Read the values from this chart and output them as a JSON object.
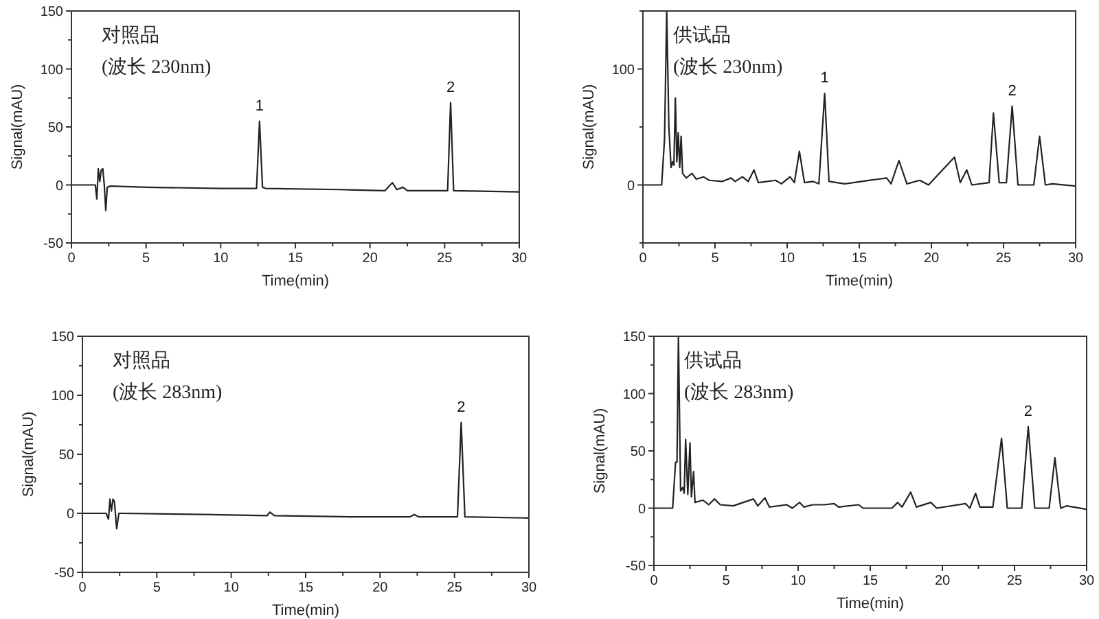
{
  "chart_data": [
    {
      "type": "line",
      "title": "对照品",
      "subtitle": "(波长 230nm)",
      "xlabel": "Time(min)",
      "ylabel": "Signal(mAU)",
      "color": "#222222",
      "x": [
        0,
        1.6,
        1.7,
        1.8,
        1.9,
        2.0,
        2.1,
        2.2,
        2.3,
        2.4,
        2.6,
        5,
        10,
        12.4,
        12.6,
        12.8,
        13,
        18,
        21,
        21.5,
        21.8,
        22.2,
        22.5,
        25.2,
        25.4,
        25.6,
        30
      ],
      "values": [
        0,
        0,
        -12,
        14,
        3,
        13,
        14,
        0,
        -22,
        -2,
        -1,
        -2,
        -3,
        -3,
        55,
        -2,
        -3,
        -4,
        -5,
        2,
        -4,
        -2,
        -5,
        -5,
        71,
        -5,
        -6
      ],
      "xlim": [
        0,
        30
      ],
      "ylim": [
        -50,
        150
      ],
      "xticks": [
        0,
        {
          "value": 2.5,
          "label": null
        },
        5,
        {
          "value": 7.5,
          "label": null
        },
        10,
        {
          "value": 12.5,
          "label": null
        },
        15,
        {
          "value": 17.5,
          "label": null
        },
        20,
        {
          "value": 22.5,
          "label": null
        },
        25,
        {
          "value": 27.5,
          "label": null
        },
        30
      ],
      "yticks": [
        -50,
        {
          "value": -25,
          "label": null
        },
        0,
        {
          "value": 25,
          "label": null
        },
        50,
        {
          "value": 75,
          "label": null
        },
        100,
        {
          "value": 125,
          "label": null
        },
        150
      ],
      "annotations": [
        {
          "text": "1",
          "x": 12.6,
          "y": 55
        },
        {
          "text": "2",
          "x": 25.4,
          "y": 71
        }
      ]
    },
    {
      "type": "line",
      "title": "供试品",
      "subtitle": "(波长 230nm)",
      "xlabel": "Time(min)",
      "ylabel": "Signal(mAU)",
      "color": "#222222",
      "x": [
        0,
        1.3,
        1.5,
        1.65,
        1.8,
        1.95,
        2.05,
        2.15,
        2.25,
        2.35,
        2.45,
        2.55,
        2.65,
        2.75,
        3.0,
        3.4,
        3.7,
        4.2,
        4.6,
        5.5,
        6.1,
        6.4,
        6.9,
        7.3,
        7.7,
        8.0,
        9.2,
        9.6,
        10.2,
        10.5,
        10.85,
        11.2,
        11.8,
        12.2,
        12.6,
        12.9,
        14,
        16.9,
        17.2,
        17.75,
        18.3,
        19.2,
        19.8,
        21.6,
        22.0,
        22.45,
        22.8,
        24,
        24.3,
        24.7,
        25.2,
        25.6,
        26.0,
        27.1,
        27.5,
        27.9,
        28.4,
        30
      ],
      "values": [
        0,
        0,
        40,
        150,
        50,
        15,
        20,
        17,
        75,
        20,
        45,
        15,
        42,
        10,
        6,
        10,
        5,
        7,
        4,
        3,
        6,
        3,
        7,
        3,
        13,
        2,
        4,
        1,
        7,
        2,
        29,
        2,
        3,
        1,
        79,
        3,
        1,
        6,
        1,
        21,
        1,
        4,
        0,
        24,
        2,
        13,
        0,
        2,
        62,
        2,
        2,
        68,
        0,
        0,
        42,
        0,
        1,
        -1
      ],
      "xlim": [
        0,
        30
      ],
      "ylim": [
        -50,
        150
      ],
      "xticks": [
        0,
        {
          "value": 2.5,
          "label": null
        },
        5,
        {
          "value": 7.5,
          "label": null
        },
        10,
        {
          "value": 12.5,
          "label": null
        },
        15,
        {
          "value": 17.5,
          "label": null
        },
        20,
        {
          "value": 22.5,
          "label": null
        },
        25,
        {
          "value": 27.5,
          "label": null
        },
        30
      ],
      "yticks": [
        {
          "value": -50,
          "label": null
        },
        0,
        {
          "value": 50,
          "label": null
        },
        100,
        {
          "value": 150,
          "label": null
        }
      ],
      "annotations": [
        {
          "text": "1",
          "x": 12.6,
          "y": 79
        },
        {
          "text": "2",
          "x": 25.6,
          "y": 68
        }
      ]
    },
    {
      "type": "line",
      "title": "对照品",
      "subtitle": "(波长 283nm)",
      "xlabel": "Time(min)",
      "ylabel": "Signal(mAU)",
      "color": "#222222",
      "x": [
        0,
        1.6,
        1.75,
        1.85,
        1.95,
        2.05,
        2.15,
        2.3,
        2.45,
        2.6,
        8,
        12.4,
        12.6,
        12.9,
        18,
        22.0,
        22.3,
        22.6,
        25.2,
        25.45,
        25.7,
        30
      ],
      "values": [
        0,
        0,
        -5,
        12,
        2,
        12,
        10,
        -13,
        0,
        0,
        -1,
        -2,
        1,
        -2,
        -3,
        -3,
        -1,
        -3,
        -3,
        77,
        -3,
        -4
      ],
      "xlim": [
        0,
        30
      ],
      "ylim": [
        -50,
        150
      ],
      "xticks": [
        0,
        {
          "value": 2.5,
          "label": null
        },
        5,
        {
          "value": 7.5,
          "label": null
        },
        10,
        {
          "value": 12.5,
          "label": null
        },
        15,
        {
          "value": 17.5,
          "label": null
        },
        20,
        {
          "value": 22.5,
          "label": null
        },
        25,
        {
          "value": 27.5,
          "label": null
        },
        30
      ],
      "yticks": [
        -50,
        {
          "value": -25,
          "label": null
        },
        0,
        {
          "value": 25,
          "label": null
        },
        50,
        {
          "value": 75,
          "label": null
        },
        100,
        {
          "value": 125,
          "label": null
        },
        150
      ],
      "annotations": [
        {
          "text": "2",
          "x": 25.45,
          "y": 77
        }
      ]
    },
    {
      "type": "line",
      "title": "供试品",
      "subtitle": "(波长 283nm)",
      "xlabel": "Time(min)",
      "ylabel": "Signal(mAU)",
      "color": "#222222",
      "x": [
        0,
        1.3,
        1.5,
        1.6,
        1.7,
        1.85,
        2.0,
        2.1,
        2.2,
        2.35,
        2.5,
        2.6,
        2.75,
        2.85,
        3.4,
        3.8,
        4.2,
        4.6,
        5.5,
        6.9,
        7.2,
        7.7,
        8.0,
        9.2,
        9.6,
        10.1,
        10.4,
        11,
        11.8,
        12.5,
        12.8,
        14.2,
        14.5,
        16.5,
        16.9,
        17.2,
        17.8,
        18.2,
        19.2,
        19.6,
        21.6,
        21.9,
        22.3,
        22.6,
        23.5,
        24.1,
        24.5,
        25.5,
        25.95,
        26.4,
        27.4,
        27.8,
        28.2,
        28.6,
        30
      ],
      "values": [
        0,
        0,
        40,
        40,
        150,
        15,
        18,
        13,
        60,
        12,
        57,
        10,
        32,
        5,
        7,
        3,
        8,
        3,
        2,
        8,
        2,
        9,
        1,
        3,
        0,
        5,
        1,
        3,
        3,
        4,
        1,
        3,
        0,
        0,
        5,
        1,
        14,
        1,
        5,
        0,
        4,
        0,
        13,
        1,
        1,
        61,
        0,
        0,
        71,
        0,
        0,
        44,
        0,
        2,
        -1
      ],
      "xlim": [
        0,
        30
      ],
      "ylim": [
        -50,
        150
      ],
      "xticks": [
        0,
        {
          "value": 2.5,
          "label": null
        },
        5,
        {
          "value": 7.5,
          "label": null
        },
        10,
        {
          "value": 12.5,
          "label": null
        },
        15,
        {
          "value": 17.5,
          "label": null
        },
        20,
        {
          "value": 22.5,
          "label": null
        },
        25,
        {
          "value": 27.5,
          "label": null
        },
        30
      ],
      "yticks": [
        -50,
        {
          "value": -25,
          "label": null
        },
        0,
        {
          "value": 25,
          "label": null
        },
        50,
        {
          "value": 75,
          "label": null
        },
        100,
        {
          "value": 125,
          "label": null
        },
        150
      ],
      "annotations": [
        {
          "text": "2",
          "x": 25.95,
          "y": 71
        }
      ]
    }
  ]
}
